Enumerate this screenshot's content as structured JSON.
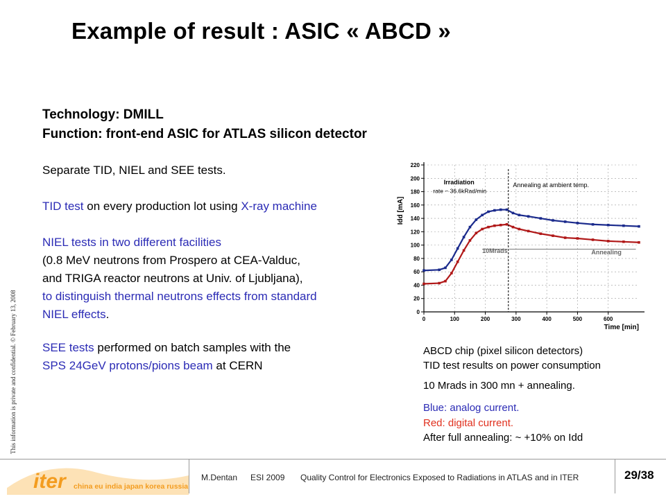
{
  "title": "Example of result : ASIC « ABCD »",
  "side_note": "This information is private and confidential. © February 13, 2008",
  "tech": {
    "line1": "Technology: DMILL",
    "line2": "Function: front-end ASIC for ATLAS silicon detector"
  },
  "body": {
    "separate": "Separate TID, NIEL and SEE tests.",
    "tid_a": "TID test",
    "tid_b": " on every production lot using ",
    "tid_c": "X-ray machine",
    "niel1": "NIEL tests in two different facilities",
    "niel2": "(0.8 MeV neutrons from Prospero at CEA-Valduc,",
    "niel3": "and TRIGA reactor neutrons at Univ. of Ljubljana),",
    "niel4": "to distinguish thermal neutrons effects from standard",
    "niel5a": "NIEL effects",
    "niel5b": ".",
    "see1a": "SEE tests",
    "see1b": " performed on batch samples with the",
    "see2a": "SPS 24GeV protons/pions beam",
    "see2b": "  at CERN"
  },
  "caption": {
    "l1": "ABCD chip (pixel silicon detectors)",
    "l2": "TID test results on power consumption",
    "l3": "10 Mrads in 300 mn + annealing.",
    "blue": "Blue: analog current.",
    "red": "Red: digital current.",
    "after": "After full annealing: ~ +10% on Idd"
  },
  "footer": {
    "author": "M.Dentan",
    "event": "ESI 2009",
    "talk": "Quality Control for Electronics Exposed to Radiations in ATLAS and in ITER",
    "page": "29/38",
    "logo_word": "iter",
    "logo_members": "china eu india japan korea russia usa"
  },
  "colors": {
    "analog": "#1a2a8c",
    "digital": "#b01818",
    "logo_orange": "#f39c1f"
  },
  "chart_data": {
    "type": "line",
    "xlabel": "Time [min]",
    "ylabel": "Idd [mA]",
    "xlim": [
      0,
      700
    ],
    "ylim": [
      0,
      220
    ],
    "xticks": [
      0,
      100,
      200,
      300,
      400,
      500,
      600
    ],
    "yticks": [
      0,
      20,
      40,
      60,
      80,
      100,
      120,
      140,
      160,
      180,
      200,
      220
    ],
    "annotations": {
      "irradiation": [
        "Irradiation",
        "rate ~ 36.6kRad/min"
      ],
      "annealing_phase": "Annealing at ambient temp.",
      "dose": "10Mrads",
      "annealing": "Annealing"
    },
    "vline_x": 275,
    "series": [
      {
        "name": "Blue: analog current.",
        "color": "#1a2a8c",
        "x": [
          0,
          50,
          70,
          90,
          110,
          130,
          150,
          170,
          190,
          210,
          230,
          250,
          270,
          290,
          310,
          340,
          380,
          420,
          460,
          500,
          550,
          600,
          650,
          700
        ],
        "y": [
          62,
          63,
          66,
          78,
          95,
          112,
          127,
          138,
          145,
          150,
          152,
          153,
          153,
          148,
          145,
          143,
          140,
          137,
          135,
          133,
          131,
          130,
          129,
          128
        ]
      },
      {
        "name": "Red: digital current.",
        "color": "#b01818",
        "x": [
          0,
          50,
          70,
          90,
          110,
          130,
          150,
          170,
          190,
          210,
          230,
          250,
          270,
          290,
          310,
          340,
          380,
          420,
          460,
          500,
          550,
          600,
          650,
          700
        ],
        "y": [
          42,
          43,
          46,
          58,
          75,
          92,
          107,
          118,
          124,
          127,
          129,
          130,
          131,
          127,
          124,
          121,
          117,
          114,
          111,
          110,
          108,
          106,
          105,
          104
        ]
      }
    ]
  }
}
